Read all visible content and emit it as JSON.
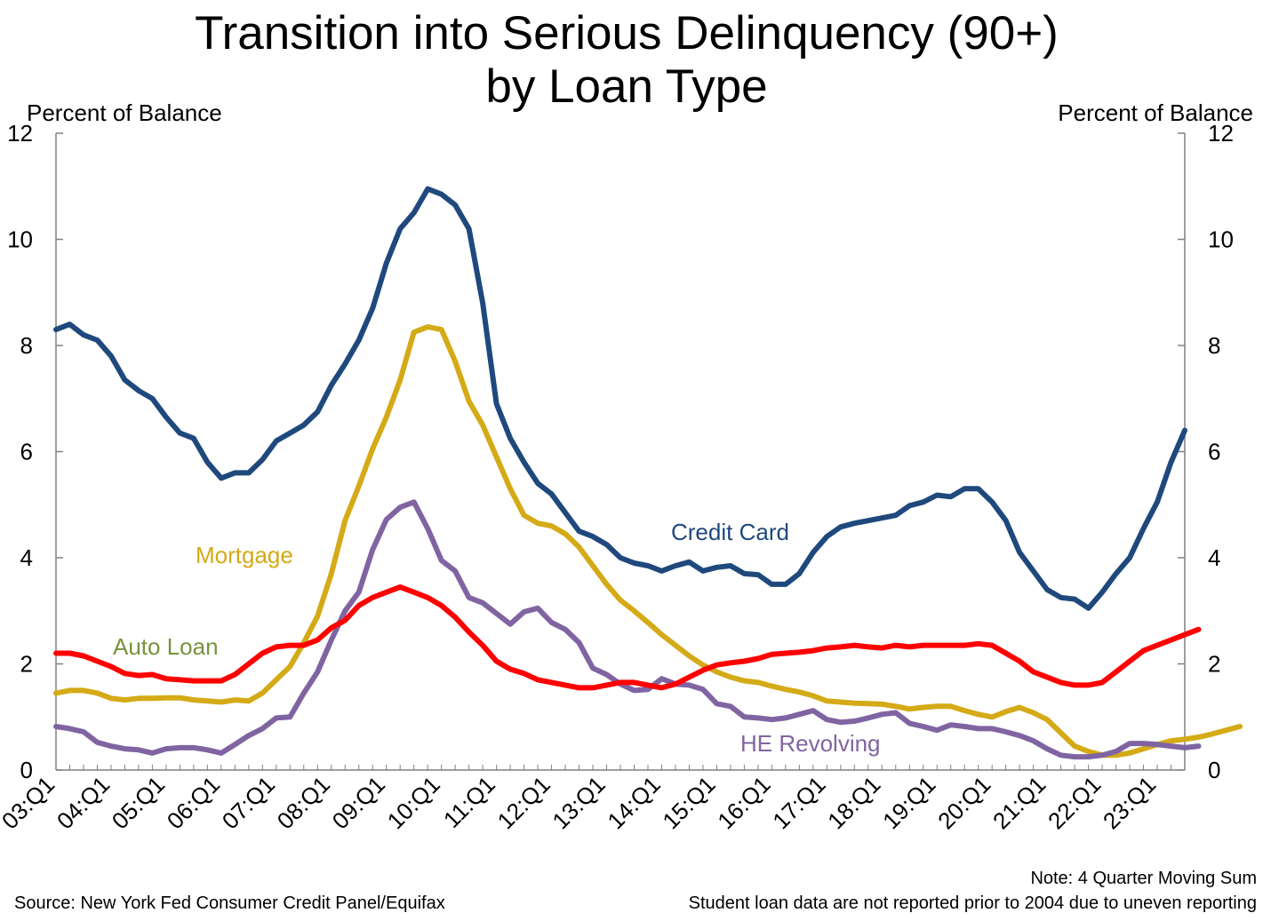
{
  "chart_data": {
    "type": "line",
    "title": "Transition into Serious Delinquency (90+)",
    "subtitle": "by Loan Type",
    "ylabel_left": "Percent of Balance",
    "ylabel_right": "Percent of Balance",
    "ylim": [
      0,
      12
    ],
    "y_ticks": [
      0,
      2,
      4,
      6,
      8,
      10,
      12
    ],
    "x_start": "2003:Q1",
    "x_ticks": [
      "03:Q1",
      "04:Q1",
      "05:Q1",
      "06:Q1",
      "07:Q1",
      "08:Q1",
      "09:Q1",
      "10:Q1",
      "11:Q1",
      "12:Q1",
      "13:Q1",
      "14:Q1",
      "15:Q1",
      "16:Q1",
      "17:Q1",
      "18:Q1",
      "19:Q1",
      "20:Q1",
      "21:Q1",
      "22:Q1",
      "23:Q1"
    ],
    "grid": false,
    "series": [
      {
        "name": "Credit Card",
        "color": "#1f497d",
        "values": [
          8.3,
          8.4,
          8.2,
          8.1,
          7.8,
          7.35,
          7.15,
          7.0,
          6.65,
          6.35,
          6.25,
          5.8,
          5.5,
          5.6,
          5.6,
          5.85,
          6.2,
          6.35,
          6.5,
          6.75,
          7.25,
          7.65,
          8.1,
          8.7,
          9.55,
          10.2,
          10.5,
          10.95,
          10.85,
          10.65,
          10.2,
          8.8,
          6.9,
          6.25,
          5.8,
          5.4,
          5.2,
          4.85,
          4.5,
          4.4,
          4.25,
          4.0,
          3.9,
          3.85,
          3.75,
          3.85,
          3.92,
          3.75,
          3.82,
          3.85,
          3.7,
          3.68,
          3.5,
          3.5,
          3.7,
          4.1,
          4.4,
          4.58,
          4.65,
          4.7,
          4.75,
          4.8,
          4.98,
          5.05,
          5.18,
          5.15,
          5.3,
          5.3,
          5.05,
          4.7,
          4.1,
          3.75,
          3.4,
          3.25,
          3.22,
          3.05,
          3.35,
          3.7,
          4.0,
          4.55,
          5.05,
          5.8,
          6.4
        ]
      },
      {
        "name": "Mortgage",
        "color": "#d4aa16",
        "values": [
          1.45,
          1.5,
          1.5,
          1.45,
          1.35,
          1.32,
          1.35,
          1.35,
          1.36,
          1.36,
          1.32,
          1.3,
          1.28,
          1.32,
          1.3,
          1.45,
          1.7,
          1.95,
          2.4,
          2.9,
          3.7,
          4.7,
          5.35,
          6.05,
          6.65,
          7.35,
          8.25,
          8.35,
          8.3,
          7.7,
          6.95,
          6.5,
          5.9,
          5.3,
          4.8,
          4.65,
          4.6,
          4.45,
          4.2,
          3.85,
          3.5,
          3.2,
          3.0,
          2.78,
          2.55,
          2.35,
          2.15,
          1.98,
          1.85,
          1.75,
          1.68,
          1.65,
          1.58,
          1.52,
          1.47,
          1.4,
          1.3,
          1.28,
          1.26,
          1.25,
          1.24,
          1.2,
          1.15,
          1.18,
          1.2,
          1.2,
          1.12,
          1.05,
          1.0,
          1.1,
          1.18,
          1.08,
          0.95,
          0.7,
          0.45,
          0.35,
          0.28,
          0.28,
          0.32,
          0.4,
          0.48,
          0.55,
          0.58,
          0.62,
          0.68,
          0.75,
          0.82
        ]
      },
      {
        "name": "Auto Loan",
        "color": "#ff0000",
        "label_color": "#77933c",
        "values": [
          2.2,
          2.2,
          2.15,
          2.05,
          1.95,
          1.82,
          1.78,
          1.8,
          1.72,
          1.7,
          1.68,
          1.68,
          1.68,
          1.8,
          2.0,
          2.2,
          2.32,
          2.35,
          2.35,
          2.45,
          2.68,
          2.82,
          3.1,
          3.25,
          3.35,
          3.45,
          3.35,
          3.25,
          3.1,
          2.88,
          2.6,
          2.35,
          2.05,
          1.9,
          1.82,
          1.7,
          1.65,
          1.6,
          1.55,
          1.55,
          1.6,
          1.65,
          1.65,
          1.6,
          1.55,
          1.62,
          1.75,
          1.88,
          1.98,
          2.02,
          2.05,
          2.1,
          2.18,
          2.2,
          2.22,
          2.25,
          2.3,
          2.32,
          2.35,
          2.32,
          2.3,
          2.35,
          2.32,
          2.35,
          2.35,
          2.35,
          2.35,
          2.38,
          2.35,
          2.2,
          2.05,
          1.85,
          1.75,
          1.65,
          1.6,
          1.6,
          1.65,
          1.85,
          2.05,
          2.25,
          2.35,
          2.45,
          2.55,
          2.65
        ]
      },
      {
        "name": "HE Revolving",
        "color": "#8064a2",
        "values": [
          0.82,
          0.78,
          0.72,
          0.52,
          0.45,
          0.4,
          0.38,
          0.32,
          0.4,
          0.42,
          0.42,
          0.38,
          0.32,
          0.48,
          0.65,
          0.78,
          0.98,
          1.0,
          1.45,
          1.85,
          2.45,
          3.0,
          3.35,
          4.15,
          4.72,
          4.95,
          5.05,
          4.55,
          3.95,
          3.75,
          3.25,
          3.15,
          2.95,
          2.75,
          2.98,
          3.05,
          2.78,
          2.65,
          2.4,
          1.92,
          1.8,
          1.62,
          1.5,
          1.52,
          1.72,
          1.62,
          1.6,
          1.52,
          1.25,
          1.2,
          1.0,
          0.98,
          0.95,
          0.98,
          1.05,
          1.12,
          0.95,
          0.9,
          0.92,
          0.98,
          1.05,
          1.08,
          0.88,
          0.82,
          0.75,
          0.85,
          0.82,
          0.78,
          0.78,
          0.72,
          0.65,
          0.55,
          0.4,
          0.28,
          0.25,
          0.25,
          0.28,
          0.35,
          0.5,
          0.5,
          0.48,
          0.45,
          0.42,
          0.45
        ]
      }
    ],
    "annotations": {
      "credit_card": "Credit Card",
      "mortgage": "Mortgage",
      "auto_loan": "Auto Loan",
      "he_revolving": "HE Revolving"
    }
  },
  "footer": {
    "source": "Source: New York Fed Consumer Credit Panel/Equifax",
    "note_1": "Note: 4 Quarter Moving Sum",
    "note_2": "Student loan data are not reported prior to 2004 due to uneven reporting"
  }
}
